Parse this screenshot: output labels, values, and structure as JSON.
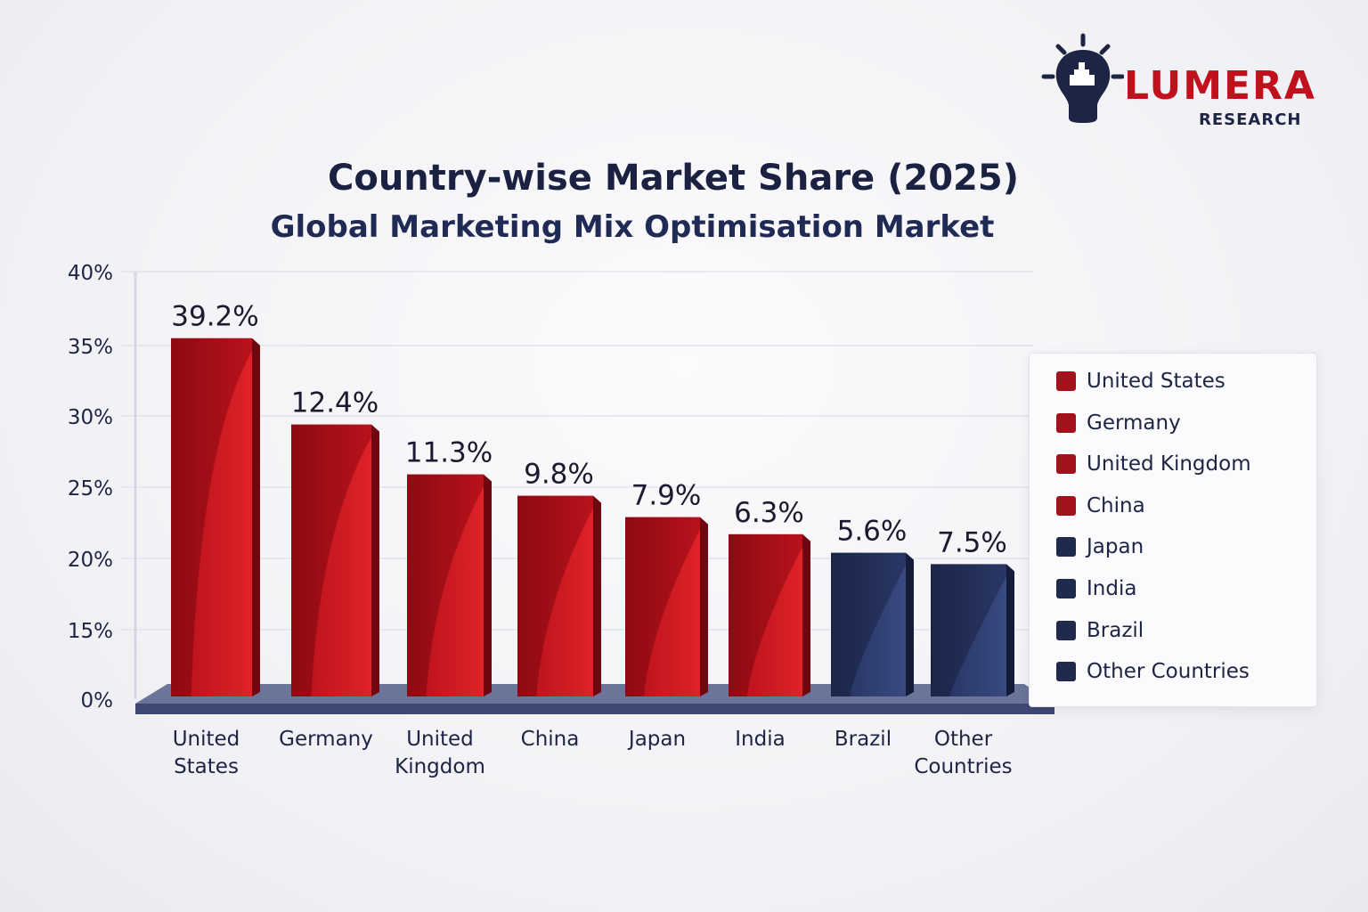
{
  "logo": {
    "word": "LUMERA",
    "sub": "RESEARCH",
    "icon": "lightbulb-hand-icon"
  },
  "chart_data": {
    "type": "bar",
    "title": "Country-wise Market Share (2025)",
    "subtitle": "Global Marketing Mix Optimisation Market",
    "categories": [
      "United States",
      "Germany",
      "United Kingdom",
      "China",
      "Japan",
      "India",
      "Brazil",
      "Other Countries"
    ],
    "category_lines": [
      [
        "United",
        "States"
      ],
      [
        "Germany"
      ],
      [
        "United",
        "Kingdom"
      ],
      [
        "China"
      ],
      [
        "Japan"
      ],
      [
        "India"
      ],
      [
        "Brazil"
      ],
      [
        "Other",
        "Countries"
      ]
    ],
    "values": [
      39.2,
      12.4,
      11.3,
      9.8,
      7.9,
      6.3,
      5.6,
      7.5
    ],
    "data_labels": [
      "39.2%",
      "12.4%",
      "11.3%",
      "9.8%",
      "7.9%",
      "6.3%",
      "5.6%",
      "7.5%"
    ],
    "bar_levels_on_axis": [
      35.5,
      29.4,
      25.9,
      24.4,
      22.9,
      21.7,
      20.4,
      19.6
    ],
    "y_ticks": [
      0,
      15,
      20,
      25,
      30,
      35,
      40
    ],
    "y_tick_labels": [
      "0%",
      "15%",
      "20%",
      "25%",
      "30%",
      "35%",
      "40%"
    ],
    "ylim": [
      0,
      40
    ],
    "grid": true,
    "legend_placement": "right",
    "legend": [
      "United States",
      "Germany",
      "United Kingdom",
      "China",
      "Japan",
      "India",
      "Brazil",
      "Other Countries"
    ],
    "colors": {
      "red": "#b5121b",
      "navy": "#24305a",
      "legend_red": "#a3111a",
      "legend_navy": "#1f2a4d"
    },
    "bar_color_groups": [
      "red",
      "red",
      "red",
      "red",
      "red",
      "red",
      "navy",
      "navy"
    ],
    "legend_color_groups": [
      "red",
      "red",
      "red",
      "red",
      "navy",
      "navy",
      "navy",
      "navy"
    ]
  }
}
